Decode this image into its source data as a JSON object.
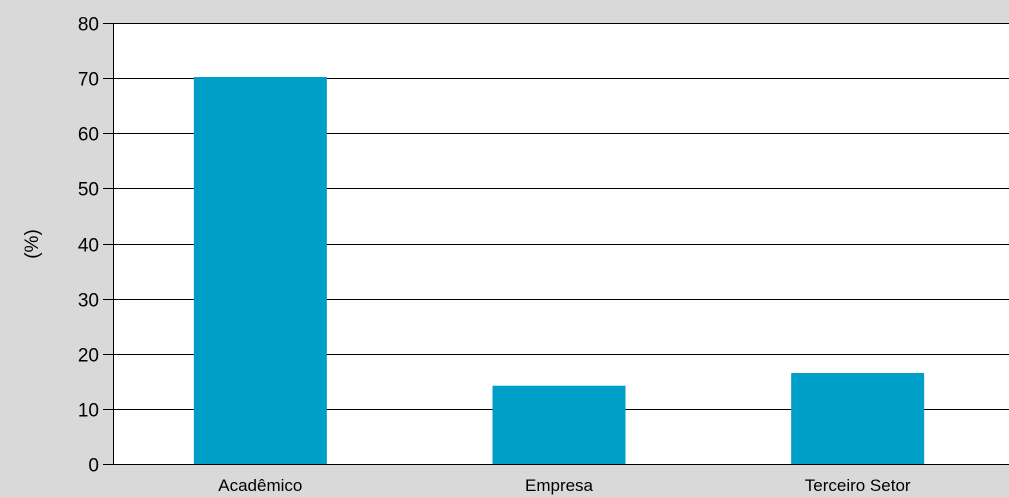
{
  "chart_data": {
    "type": "bar",
    "title": "",
    "xlabel": "",
    "ylabel": "(%)",
    "categories": [
      "Acadêmico",
      "Empresa",
      "Terceiro Setor"
    ],
    "values": [
      70.2,
      14.2,
      16.5
    ],
    "ylim": [
      0,
      80
    ],
    "yticks": [
      0,
      10,
      20,
      30,
      40,
      50,
      60,
      70,
      80
    ],
    "grid": true,
    "colors": {
      "bar": "#009fc7",
      "background": "#d9d9d9",
      "plot_background": "#ffffff",
      "gridline": "#000000"
    }
  }
}
